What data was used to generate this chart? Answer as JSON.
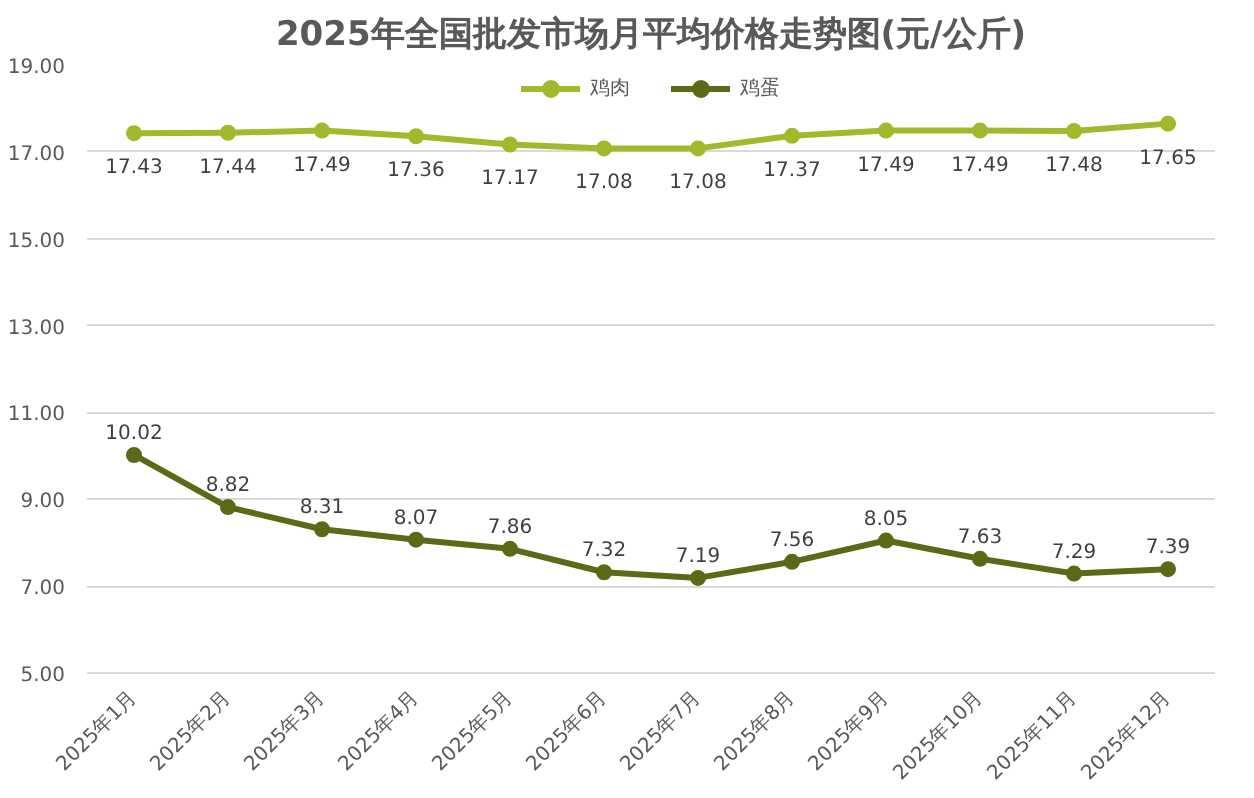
{
  "chart_data": {
    "type": "line",
    "title": "2025年全国批发市场月平均价格走势图(元/公斤)",
    "categories": [
      "2025年1月",
      "2025年2月",
      "2025年3月",
      "2025年4月",
      "2025年5月",
      "2025年6月",
      "2025年7月",
      "2025年8月",
      "2025年9月",
      "2025年10月",
      "2025年11月",
      "2025年12月"
    ],
    "series": [
      {
        "name": "鸡肉",
        "color": "#a2b92c",
        "values": [
          17.43,
          17.44,
          17.49,
          17.36,
          17.17,
          17.08,
          17.08,
          17.37,
          17.49,
          17.49,
          17.48,
          17.65
        ]
      },
      {
        "name": "鸡蛋",
        "color": "#5b6a17",
        "values": [
          10.02,
          8.82,
          8.31,
          8.07,
          7.86,
          7.32,
          7.19,
          7.56,
          8.05,
          7.63,
          7.29,
          7.39
        ]
      }
    ],
    "ylim": [
      5,
      19
    ],
    "yticks": [
      {
        "value": 5,
        "label": "5.00"
      },
      {
        "value": 7,
        "label": "7.00"
      },
      {
        "value": 9,
        "label": "9.00"
      },
      {
        "value": 11,
        "label": "11.00"
      },
      {
        "value": 13,
        "label": "13.00"
      },
      {
        "value": 15,
        "label": "15.00"
      },
      {
        "value": 17,
        "label": "17.00"
      },
      {
        "value": 19,
        "label": "19.00"
      }
    ],
    "grid": "y",
    "legend": "top",
    "marker": "circle",
    "line_style": "solid",
    "data_labels": true
  }
}
